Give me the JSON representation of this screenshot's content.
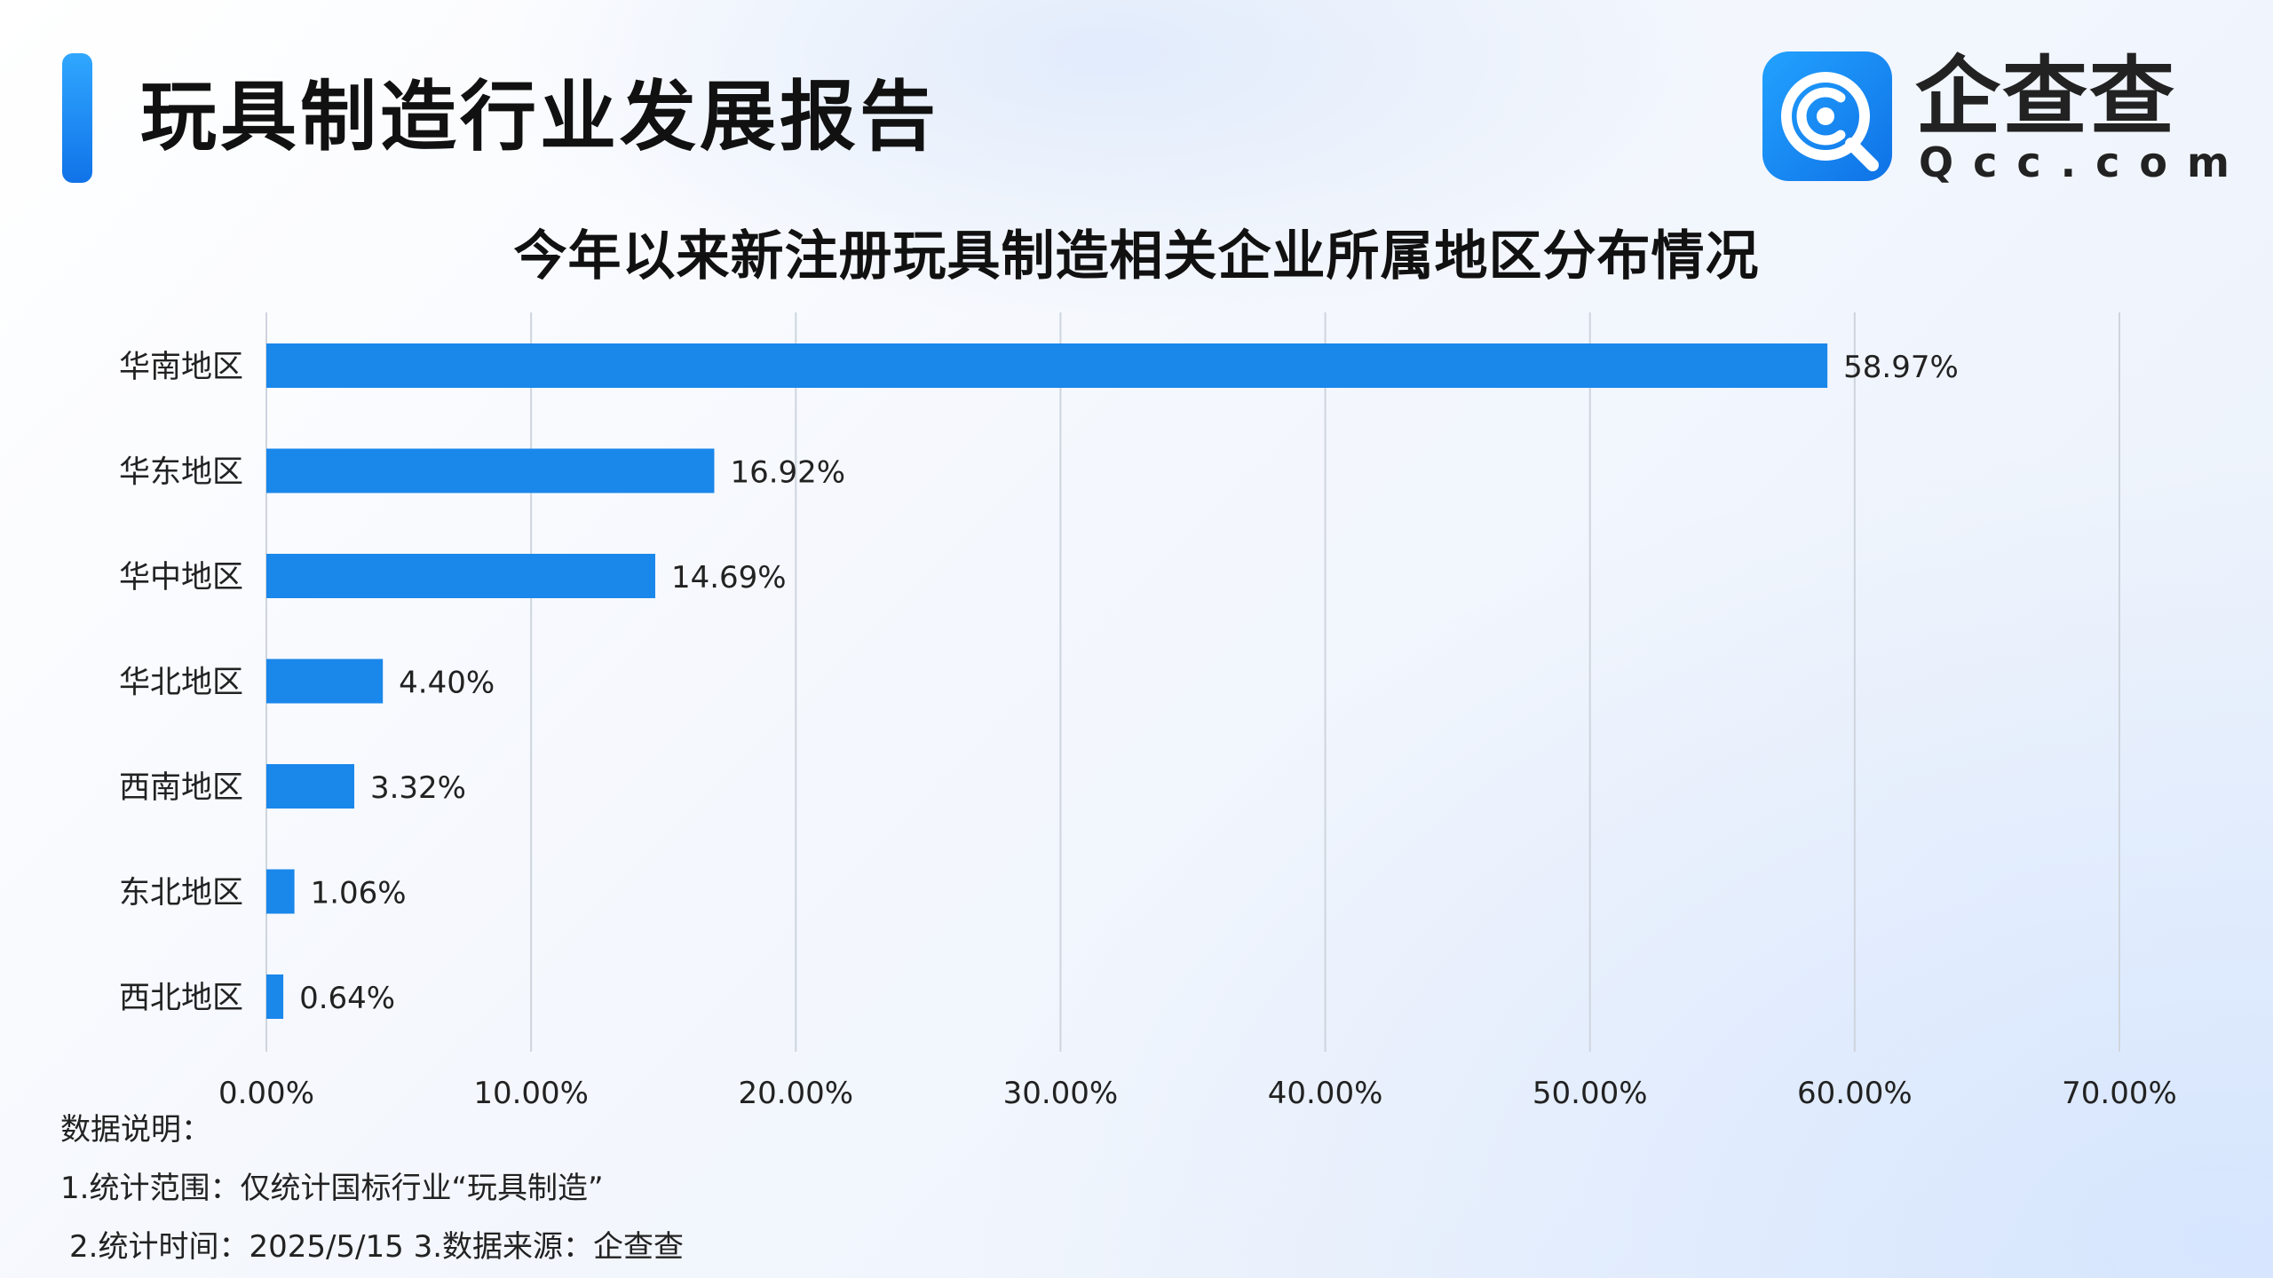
{
  "header": {
    "title": "玩具制造行业发展报告"
  },
  "logo": {
    "name": "企查查",
    "domain": "Qcc.com",
    "icon": "qcc-logo-icon",
    "brand_color": "#1a86f0"
  },
  "colors": {
    "bar": "#1a87eb",
    "accent": "#1b87f2",
    "grid": "#cfd5dd"
  },
  "chart_data": {
    "type": "bar",
    "orientation": "horizontal",
    "title": "今年以来新注册玩具制造相关企业所属地区分布情况",
    "categories": [
      "华南地区",
      "华东地区",
      "华中地区",
      "华北地区",
      "西南地区",
      "东北地区",
      "西北地区"
    ],
    "values": [
      58.97,
      16.92,
      14.69,
      4.4,
      3.32,
      1.06,
      0.64
    ],
    "value_labels": [
      "58.97%",
      "16.92%",
      "14.69%",
      "4.40%",
      "3.32%",
      "1.06%",
      "0.64%"
    ],
    "xlim": [
      0,
      70
    ],
    "x_ticks": [
      "0.00%",
      "10.00%",
      "20.00%",
      "30.00%",
      "40.00%",
      "50.00%",
      "60.00%",
      "70.00%"
    ],
    "grid": "vertical"
  },
  "notes": {
    "heading": "数据说明：",
    "line1": "1.统计范围：仅统计国标行业“玩具制造”",
    "line2": "2.统计时间：2025/5/15   3.数据来源：企查查"
  }
}
